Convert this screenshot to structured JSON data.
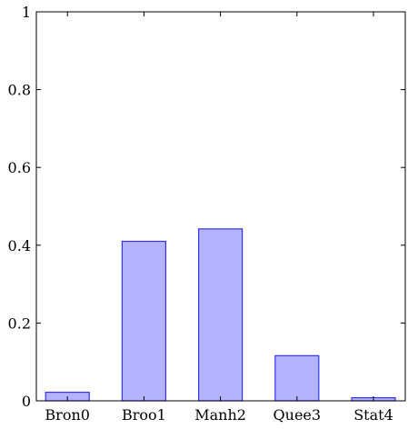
{
  "chart_data": {
    "type": "bar",
    "title": "",
    "xlabel": "",
    "ylabel": "",
    "categories": [
      "Bron0",
      "Broo1",
      "Manh2",
      "Quee3",
      "Stat4"
    ],
    "values": [
      0.022,
      0.41,
      0.442,
      0.116,
      0.008
    ],
    "ylim": [
      0,
      1
    ],
    "yticks": [
      0,
      0.2,
      0.4,
      0.6,
      0.8,
      1
    ],
    "ytick_labels": [
      "0",
      "0.2",
      "0.4",
      "0.6",
      "0.8",
      "1"
    ],
    "grid": false,
    "bar_fill": "#b3b3ff",
    "bar_stroke": "#3333ff"
  }
}
